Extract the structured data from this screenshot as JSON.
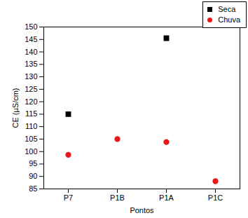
{
  "chart_data": {
    "type": "scatter",
    "categories": [
      "P7",
      "P1B",
      "P1A",
      "P1C"
    ],
    "x_label": "Pontos",
    "y_label": "CE (µS/cm)",
    "ylim": [
      85,
      150
    ],
    "yticks": [
      85,
      90,
      95,
      100,
      105,
      110,
      115,
      120,
      125,
      130,
      135,
      140,
      145,
      150
    ],
    "grid": false,
    "legend": "top-right",
    "series": [
      {
        "name": "Seca",
        "color": "#000000",
        "marker": "square",
        "values": [
          115,
          null,
          145.5,
          null
        ]
      },
      {
        "name": "Chuva",
        "color": "#e8181a",
        "marker": "circle",
        "values": [
          98.7,
          105,
          103.8,
          88.1
        ]
      }
    ]
  }
}
